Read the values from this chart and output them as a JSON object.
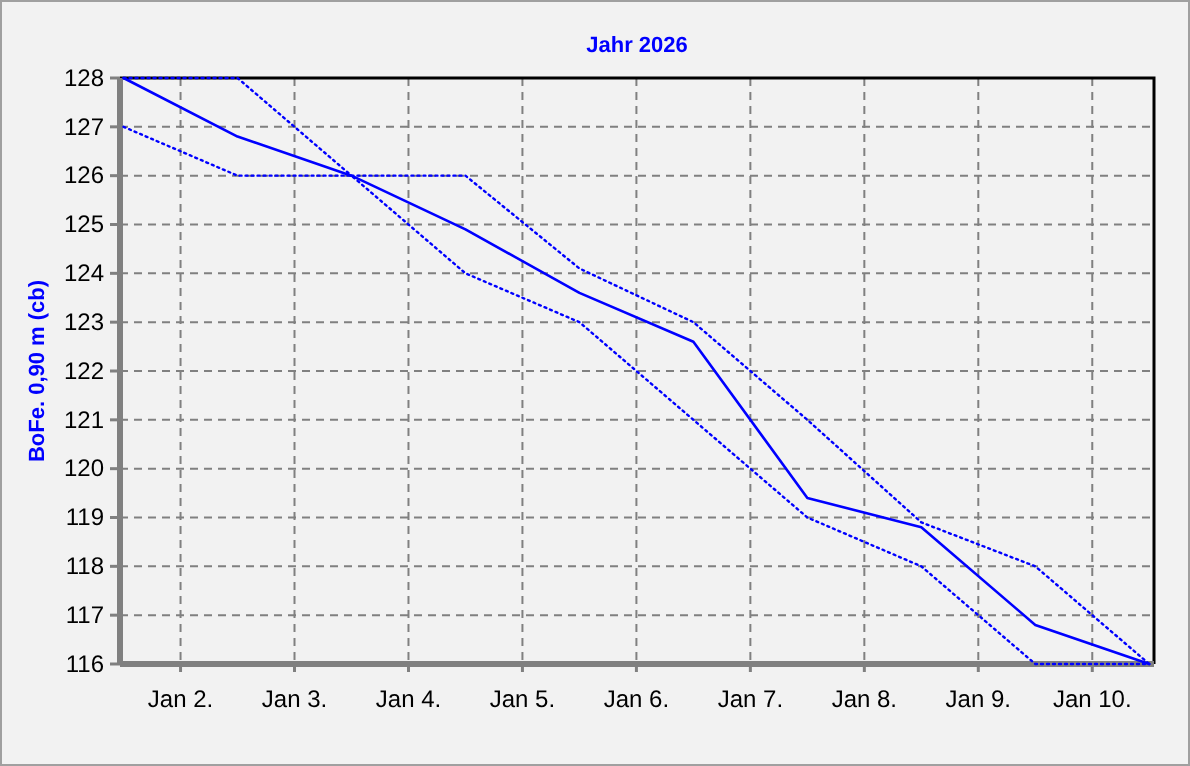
{
  "chart_data": {
    "type": "line",
    "title": "Jahr 2026",
    "ylabel": "BoFe. 0,90 m (cb)",
    "x": [
      "2026-01-01T12:00",
      "2026-01-02T12:00",
      "2026-01-03T12:00",
      "2026-01-04T12:00",
      "2026-01-05T12:00",
      "2026-01-06T12:00",
      "2026-01-07T12:00",
      "2026-01-08T12:00",
      "2026-01-09T12:00",
      "2026-01-10T12:00"
    ],
    "series": [
      {
        "color": "#0000ff",
        "line_style": "solid",
        "values": [
          128,
          126.8,
          126.0,
          124.9,
          123.6,
          122.6,
          119.4,
          118.8,
          116.8,
          116.0
        ]
      },
      {
        "color": "#0000ff",
        "line_style": "dotted",
        "values": [
          128,
          128,
          126,
          126,
          124.1,
          123.0,
          121.0,
          118.9,
          118.0,
          116.0
        ]
      },
      {
        "color": "#0000ff",
        "line_style": "dotted",
        "values": [
          127,
          126,
          126,
          124.0,
          123.0,
          121.0,
          119.0,
          118.0,
          116.0,
          116.0
        ]
      }
    ],
    "xlim": [
      "2026-01-01T11:15",
      "2026-01-10T13:00"
    ],
    "xticks": [
      {
        "value": "2026-01-02",
        "label": "Jan 2."
      },
      {
        "value": "2026-01-03",
        "label": "Jan 3."
      },
      {
        "value": "2026-01-04",
        "label": "Jan 4."
      },
      {
        "value": "2026-01-05",
        "label": "Jan 5."
      },
      {
        "value": "2026-01-06",
        "label": "Jan 6."
      },
      {
        "value": "2026-01-07",
        "label": "Jan 7."
      },
      {
        "value": "2026-01-08",
        "label": "Jan 8."
      },
      {
        "value": "2026-01-09",
        "label": "Jan 9."
      },
      {
        "value": "2026-01-10",
        "label": "Jan 10."
      }
    ],
    "ylim": [
      116,
      128
    ],
    "yticks": [
      116,
      117,
      118,
      119,
      120,
      121,
      122,
      123,
      124,
      125,
      126,
      127,
      128
    ],
    "grid": true,
    "marker": "none"
  }
}
